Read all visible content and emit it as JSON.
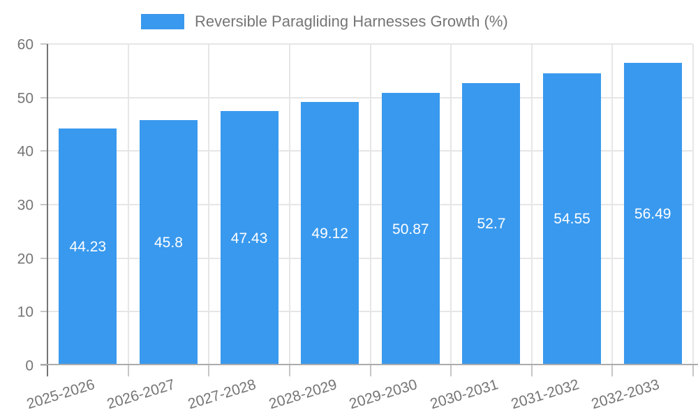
{
  "chart_data": {
    "type": "bar",
    "title": "Reversible Paragliding Harnesses Growth (%)",
    "categories": [
      "2025-2026",
      "2026-2027",
      "2027-2028",
      "2028-2029",
      "2029-2030",
      "2030-2031",
      "2031-2032",
      "2032-2033"
    ],
    "values": [
      44.23,
      45.8,
      47.43,
      49.12,
      50.87,
      52.7,
      54.55,
      56.49
    ],
    "value_labels": [
      "44.23",
      "45.8",
      "47.43",
      "49.12",
      "50.87",
      "52.7",
      "54.55",
      "56.49"
    ],
    "xlabel": "",
    "ylabel": "",
    "ylim": [
      0,
      60
    ],
    "yticks": [
      0,
      10,
      20,
      30,
      40,
      50,
      60
    ],
    "grid": true,
    "legend_position": "top-center",
    "x_label_rotation_deg": -17,
    "colors": {
      "bar": "#3999ee",
      "value_text": "#ffffff",
      "axis_text": "#757575",
      "gridline": "#e6e6e6",
      "y_axis_line": "#757575",
      "baseline": "#ababab",
      "tick_mark": "#c6c6c6",
      "background": "#ffffff"
    }
  }
}
